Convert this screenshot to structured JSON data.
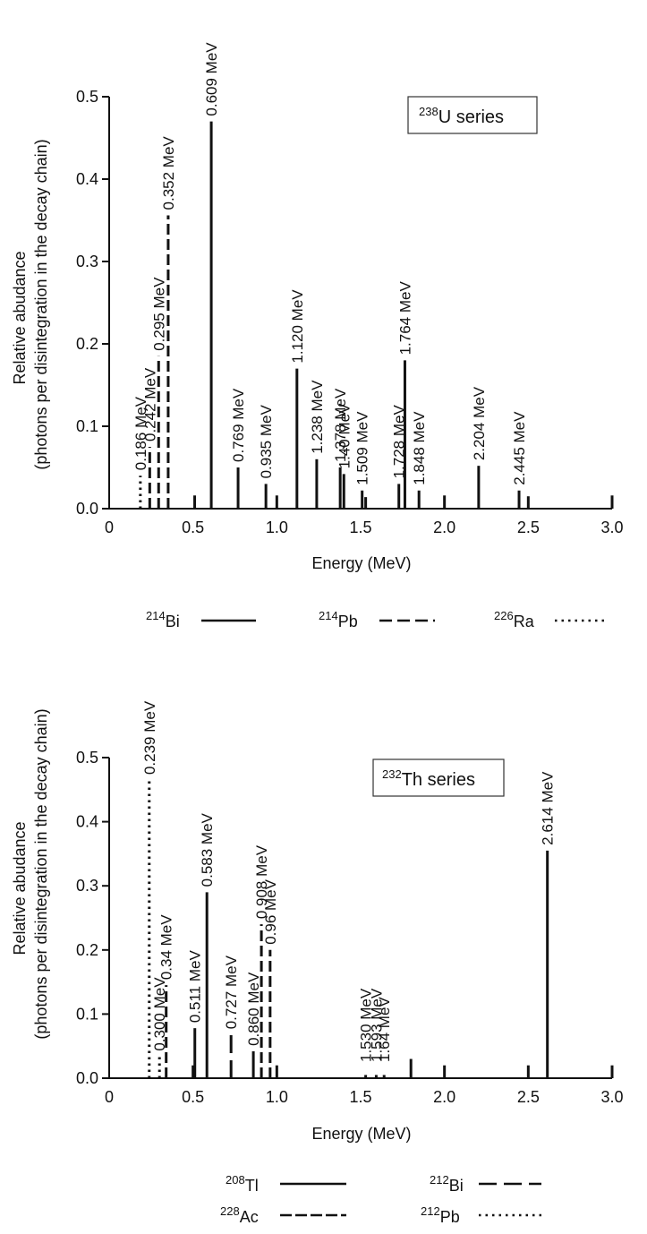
{
  "chart_data": [
    {
      "type": "bar",
      "series_box": {
        "sup": "238",
        "text": "U series"
      },
      "xlabel": "Energy (MeV)",
      "ylabel_line1": "Relative abudance",
      "ylabel_line2": "(photons per disintegration in the decay chain)",
      "xlim": [
        0,
        3.0
      ],
      "ylim": [
        0,
        0.5
      ],
      "xticks": [
        "0",
        "0.5",
        "1.0",
        "1.5",
        "2.0",
        "2.5",
        "3.0"
      ],
      "xtick_values": [
        0,
        0.5,
        1.0,
        1.5,
        2.0,
        2.5,
        3.0
      ],
      "yticks": [
        "0.0",
        "0.1",
        "0.2",
        "0.3",
        "0.4",
        "0.5"
      ],
      "ytick_values": [
        0,
        0.1,
        0.2,
        0.3,
        0.4,
        0.5
      ],
      "legend": [
        {
          "sup": "214",
          "name": "Bi",
          "style": "solid"
        },
        {
          "sup": "214",
          "name": "Pb",
          "style": "dashed"
        },
        {
          "sup": "226",
          "name": "Ra",
          "style": "dotted"
        }
      ],
      "lines": [
        {
          "x": 0.186,
          "y": 0.04,
          "style": "dotted",
          "label": "0.186 MeV"
        },
        {
          "x": 0.242,
          "y": 0.075,
          "style": "dashed",
          "label": "0.242 MeV"
        },
        {
          "x": 0.295,
          "y": 0.185,
          "style": "dashed",
          "label": "0.295 MeV"
        },
        {
          "x": 0.352,
          "y": 0.356,
          "style": "dashed",
          "label": "0.352 MeV"
        },
        {
          "x": 0.51,
          "y": 0.016,
          "style": "solid",
          "label": ""
        },
        {
          "x": 0.609,
          "y": 0.47,
          "style": "solid",
          "label": "0.609 MeV"
        },
        {
          "x": 0.769,
          "y": 0.05,
          "style": "solid",
          "label": "0.769 MeV"
        },
        {
          "x": 0.935,
          "y": 0.03,
          "style": "solid",
          "label": "0.935 MeV"
        },
        {
          "x": 1.0,
          "y": 0.016,
          "style": "solid",
          "label": ""
        },
        {
          "x": 1.12,
          "y": 0.17,
          "style": "solid",
          "label": "1.120 MeV"
        },
        {
          "x": 1.238,
          "y": 0.06,
          "style": "solid",
          "label": "1.238 MeV"
        },
        {
          "x": 1.378,
          "y": 0.05,
          "style": "solid",
          "label": "1.378 MeV"
        },
        {
          "x": 1.4,
          "y": 0.042,
          "style": "solid",
          "label": "1.40 MeV"
        },
        {
          "x": 1.509,
          "y": 0.022,
          "style": "solid",
          "label": "1.509 MeV"
        },
        {
          "x": 1.53,
          "y": 0.014,
          "style": "solid",
          "label": ""
        },
        {
          "x": 1.728,
          "y": 0.03,
          "style": "solid",
          "label": "1.728 MeV"
        },
        {
          "x": 1.764,
          "y": 0.18,
          "style": "solid",
          "label": "1.764 MeV"
        },
        {
          "x": 1.848,
          "y": 0.022,
          "style": "solid",
          "label": "1.848 MeV"
        },
        {
          "x": 2.0,
          "y": 0.016,
          "style": "solid",
          "label": ""
        },
        {
          "x": 2.204,
          "y": 0.052,
          "style": "solid",
          "label": "2.204 MeV"
        },
        {
          "x": 2.445,
          "y": 0.022,
          "style": "solid",
          "label": "2.445 MeV"
        },
        {
          "x": 2.5,
          "y": 0.015,
          "style": "solid",
          "label": ""
        },
        {
          "x": 3.0,
          "y": 0.016,
          "style": "solid",
          "label": ""
        }
      ]
    },
    {
      "type": "bar",
      "series_box": {
        "sup": "232",
        "text": "Th series"
      },
      "xlabel": "Energy (MeV)",
      "ylabel_line1": "Relative abudance",
      "ylabel_line2": "(photons per disintegration in the decay chain)",
      "xlim": [
        0,
        3.0
      ],
      "ylim": [
        0,
        0.5
      ],
      "xticks": [
        "0",
        "0.5",
        "1.0",
        "1.5",
        "2.0",
        "2.5",
        "3.0"
      ],
      "xtick_values": [
        0,
        0.5,
        1.0,
        1.5,
        2.0,
        2.5,
        3.0
      ],
      "yticks": [
        "0.0",
        "0.1",
        "0.2",
        "0.3",
        "0.4",
        "0.5"
      ],
      "ytick_values": [
        0,
        0.1,
        0.2,
        0.3,
        0.4,
        0.5
      ],
      "legend": [
        {
          "sup": "208",
          "name": "Tl",
          "style": "solid"
        },
        {
          "sup": "212",
          "name": "Bi",
          "style": "longdash"
        },
        {
          "sup": "228",
          "name": "Ac",
          "style": "dashed"
        },
        {
          "sup": "212",
          "name": "Pb",
          "style": "dotted"
        }
      ],
      "lines": [
        {
          "x": 0.239,
          "y": 0.465,
          "style": "dotted",
          "label": "0.239 MeV"
        },
        {
          "x": 0.3,
          "y": 0.034,
          "style": "dotted",
          "label": "0.300 MeV"
        },
        {
          "x": 0.34,
          "y": 0.145,
          "style": "dashed",
          "label": "0.34 MeV"
        },
        {
          "x": 0.5,
          "y": 0.02,
          "style": "solid",
          "label": ""
        },
        {
          "x": 0.511,
          "y": 0.078,
          "style": "solid",
          "label": "0.511 MeV"
        },
        {
          "x": 0.583,
          "y": 0.29,
          "style": "solid",
          "label": "0.583 MeV"
        },
        {
          "x": 0.727,
          "y": 0.068,
          "style": "longdash",
          "label": "0.727 MeV"
        },
        {
          "x": 0.86,
          "y": 0.042,
          "style": "solid",
          "label": "0.860 MeV"
        },
        {
          "x": 0.908,
          "y": 0.24,
          "style": "dashed",
          "label": "0.908 MeV"
        },
        {
          "x": 0.96,
          "y": 0.2,
          "style": "dashed",
          "label": "0.96 MeV"
        },
        {
          "x": 1.0,
          "y": 0.02,
          "style": "solid",
          "label": ""
        },
        {
          "x": 1.53,
          "y": 0.005,
          "style": "solid",
          "label": "1.530 MeV"
        },
        {
          "x": 1.593,
          "y": 0.005,
          "style": "solid",
          "label": "1.593 MeV"
        },
        {
          "x": 1.64,
          "y": 0.005,
          "style": "solid",
          "label": "1.64 MeV"
        },
        {
          "x": 1.8,
          "y": 0.03,
          "style": "solid",
          "label": ""
        },
        {
          "x": 2.0,
          "y": 0.02,
          "style": "solid",
          "label": ""
        },
        {
          "x": 2.5,
          "y": 0.02,
          "style": "solid",
          "label": ""
        },
        {
          "x": 2.614,
          "y": 0.355,
          "style": "solid",
          "label": "2.614 MeV"
        },
        {
          "x": 3.0,
          "y": 0.02,
          "style": "solid",
          "label": ""
        }
      ]
    }
  ]
}
